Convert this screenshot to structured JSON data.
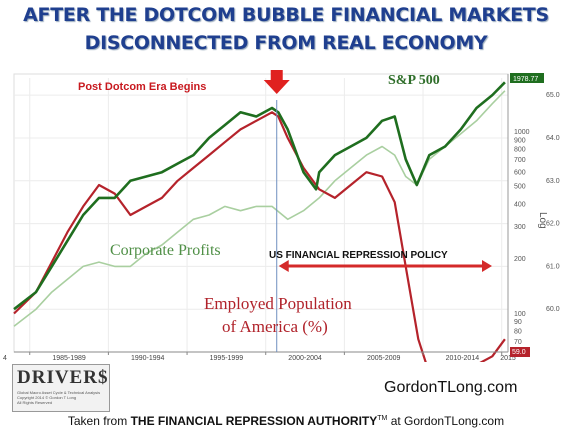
{
  "title_line1": "AFTER THE DOTCOM BUBBLE FINANCIAL MARKETS",
  "title_line2": "DISCONNECTED FROM REAL ECONOMY",
  "site": "GordonTLong.com",
  "footer": {
    "prefix": "Taken from ",
    "bold": "THE FINANCIAL REPRESSION AUTHORITY",
    "tm": "TM",
    "suffix": " at GordonTLong.com"
  },
  "logo": {
    "name": "DRIVER$",
    "sub1": "Global Macro Asset Cycle & Technical Analysis",
    "sub2": "Copyright 2014 © Gordon T Long",
    "sub3": "All Rights Reserved"
  },
  "colors": {
    "sp500": "#1f6e1f",
    "profits": "#a9cfa0",
    "employment": "#b5232b",
    "title": "#1f3f8f",
    "marker": "#e0211f"
  },
  "chart_data": {
    "type": "line",
    "x_axis": {
      "range": [
        1983.6,
        2015.0
      ],
      "ticks": [
        "1985-1989",
        "1990-1994",
        "1995-1999",
        "2000-2004",
        "2005-2009",
        "2010-2014",
        "2015"
      ],
      "left_edge_label": "4"
    },
    "right_axis_inner": {
      "label": "Log",
      "range": [
        700,
        2000
      ],
      "ticks": [
        "1000",
        "900",
        "800",
        "700",
        "600",
        "500",
        "400",
        "300",
        "200",
        "100",
        "90",
        "80",
        "70"
      ],
      "tag_value": "1978.77"
    },
    "right_axis_outer": {
      "range": [
        59.0,
        65.4
      ],
      "ticks": [
        "65.0",
        "64.0",
        "63.0",
        "62.0",
        "61.0",
        "60.0"
      ],
      "tag_value": "59.0"
    },
    "series": [
      {
        "name": "S&P 500",
        "axis": "outer",
        "x": [
          1983.6,
          1985,
          1986,
          1987,
          1988,
          1989,
          1990,
          1991,
          1992,
          1993,
          1994,
          1995,
          1996,
          1997,
          1998,
          1999,
          2000,
          2000.4,
          2001,
          2002,
          2002.8,
          2003,
          2004,
          2005,
          2006,
          2007,
          2007.8,
          2008.5,
          2009.2,
          2010,
          2011,
          2012,
          2013,
          2014,
          2014.8
        ],
        "y": [
          60.0,
          60.4,
          61.0,
          61.6,
          62.2,
          62.6,
          62.6,
          63.0,
          63.1,
          63.2,
          63.4,
          63.6,
          64.0,
          64.3,
          64.6,
          64.5,
          64.7,
          64.6,
          64.2,
          63.2,
          62.8,
          63.2,
          63.6,
          63.8,
          64.0,
          64.4,
          64.5,
          63.5,
          62.9,
          63.6,
          63.8,
          64.2,
          64.7,
          65.0,
          65.3
        ]
      },
      {
        "name": "Corporate Profits",
        "axis": "outer",
        "x": [
          1983.6,
          1985,
          1986,
          1987,
          1988,
          1989,
          1990,
          1991,
          1992,
          1993,
          1994,
          1995,
          1996,
          1997,
          1998,
          1999,
          2000,
          2001,
          2002,
          2003,
          2004,
          2005,
          2006,
          2007,
          2007.8,
          2008.5,
          2009.2,
          2010,
          2011,
          2012,
          2013,
          2014,
          2014.8
        ],
        "y": [
          59.6,
          60.0,
          60.4,
          60.7,
          61.0,
          61.1,
          61.0,
          61.0,
          61.3,
          61.5,
          61.8,
          62.1,
          62.2,
          62.4,
          62.3,
          62.4,
          62.4,
          62.1,
          62.3,
          62.6,
          63.0,
          63.3,
          63.6,
          63.8,
          63.6,
          63.1,
          62.9,
          63.5,
          63.8,
          64.1,
          64.4,
          64.8,
          65.1
        ]
      },
      {
        "name": "Employed Population of America (%)",
        "axis": "outer",
        "x": [
          1983.6,
          1985,
          1986,
          1987,
          1988,
          1989,
          1990,
          1991,
          1992,
          1993,
          1994,
          1995,
          1996,
          1997,
          1998,
          1999,
          2000,
          2000.4,
          2001,
          2002,
          2003,
          2004,
          2005,
          2006,
          2007,
          2007.8,
          2008.5,
          2009.3,
          2010,
          2011,
          2012,
          2013,
          2014,
          2014.8
        ],
        "y": [
          59.9,
          60.4,
          61.1,
          61.8,
          62.4,
          62.9,
          62.7,
          62.2,
          62.4,
          62.6,
          63.0,
          63.3,
          63.6,
          63.9,
          64.2,
          64.4,
          64.6,
          64.5,
          64.0,
          63.3,
          62.8,
          62.6,
          62.9,
          63.2,
          63.1,
          62.5,
          61.0,
          59.3,
          58.5,
          58.6,
          58.6,
          58.7,
          58.9,
          59.3
        ]
      }
    ],
    "annotations": {
      "post_dotcom": "Post Dotcom Era Begins",
      "sp500_label": "S&P 500",
      "profits_label": "Corporate Profits",
      "employment_label_1": "Employed Population",
      "employment_label_2": "of America (%)",
      "policy_label": "US FINANCIAL REPRESSION POLICY",
      "marker_x": 2000.3,
      "policy_range": [
        2000.3,
        2015.0
      ]
    },
    "grid": true
  }
}
